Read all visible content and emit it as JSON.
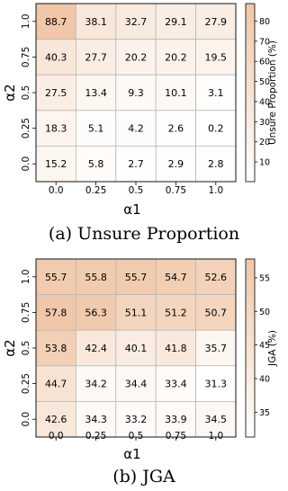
{
  "chart_data": [
    {
      "type": "heatmap",
      "caption": "(a) Unsure Proportion",
      "xlabel": "α1",
      "ylabel": "α2",
      "x_categories": [
        "0.0",
        "0.25",
        "0.5",
        "0.75",
        "1.0"
      ],
      "y_categories_top_to_bottom": [
        "1.0",
        "0.75",
        "0.5",
        "0.25",
        "0.0"
      ],
      "values": [
        [
          88.7,
          38.1,
          32.7,
          29.1,
          27.9
        ],
        [
          40.3,
          27.7,
          20.2,
          20.2,
          19.5
        ],
        [
          27.5,
          13.4,
          9.3,
          10.1,
          3.1
        ],
        [
          18.3,
          5.1,
          4.2,
          2.6,
          0.2
        ],
        [
          15.2,
          5.8,
          2.7,
          2.9,
          2.8
        ]
      ],
      "value_labels": [
        [
          "88.7",
          "38.1",
          "32.7",
          "29.1",
          "27.9"
        ],
        [
          "40.3",
          "27.7",
          "20.2",
          "20.2",
          "19.5"
        ],
        [
          "27.5",
          "13.4",
          "9.3",
          "10.1",
          "3.1"
        ],
        [
          "18.3",
          "5.1",
          "4.2",
          "2.6",
          "0.2"
        ],
        [
          "15.2",
          "5.8",
          "2.7",
          "2.9",
          "2.8"
        ]
      ],
      "colorbar": {
        "label": "Unsure Proportion (%)",
        "range": [
          0.2,
          88.7
        ],
        "ticks": [
          10,
          20,
          30,
          40,
          50,
          60,
          70,
          80
        ],
        "low_color": "#ffffff",
        "high_color": "#f0c7a8"
      }
    },
    {
      "type": "heatmap",
      "caption": "(b) JGA",
      "xlabel": "α1",
      "ylabel": "α2",
      "x_categories": [
        "0.0",
        "0.25",
        "0.5",
        "0.75",
        "1.0"
      ],
      "y_categories_top_to_bottom": [
        "1.0",
        "0.75",
        "0.5",
        "0.25",
        "0.0"
      ],
      "values": [
        [
          55.7,
          55.8,
          55.7,
          54.7,
          52.6
        ],
        [
          57.8,
          56.3,
          51.1,
          51.2,
          50.7
        ],
        [
          53.8,
          42.4,
          40.1,
          41.8,
          35.7
        ],
        [
          44.7,
          34.2,
          34.4,
          33.4,
          31.3
        ],
        [
          42.6,
          34.3,
          33.2,
          33.9,
          34.5
        ]
      ],
      "value_labels": [
        [
          "55.7",
          "55.8",
          "55.7",
          "54.7",
          "52.6"
        ],
        [
          "57.8",
          "56.3",
          "51.1",
          "51.2",
          "50.7"
        ],
        [
          "53.8",
          "42.4",
          "40.1",
          "41.8",
          "35.7"
        ],
        [
          "44.7",
          "34.2",
          "34.4",
          "33.4",
          "31.3"
        ],
        [
          "42.6",
          "34.3",
          "33.2",
          "33.9",
          "34.5"
        ]
      ],
      "colorbar": {
        "label": "JGA (%)",
        "range": [
          31.3,
          57.8
        ],
        "ticks": [
          35,
          40,
          45,
          50,
          55
        ],
        "low_color": "#ffffff",
        "high_color": "#f0c7a8"
      }
    }
  ]
}
